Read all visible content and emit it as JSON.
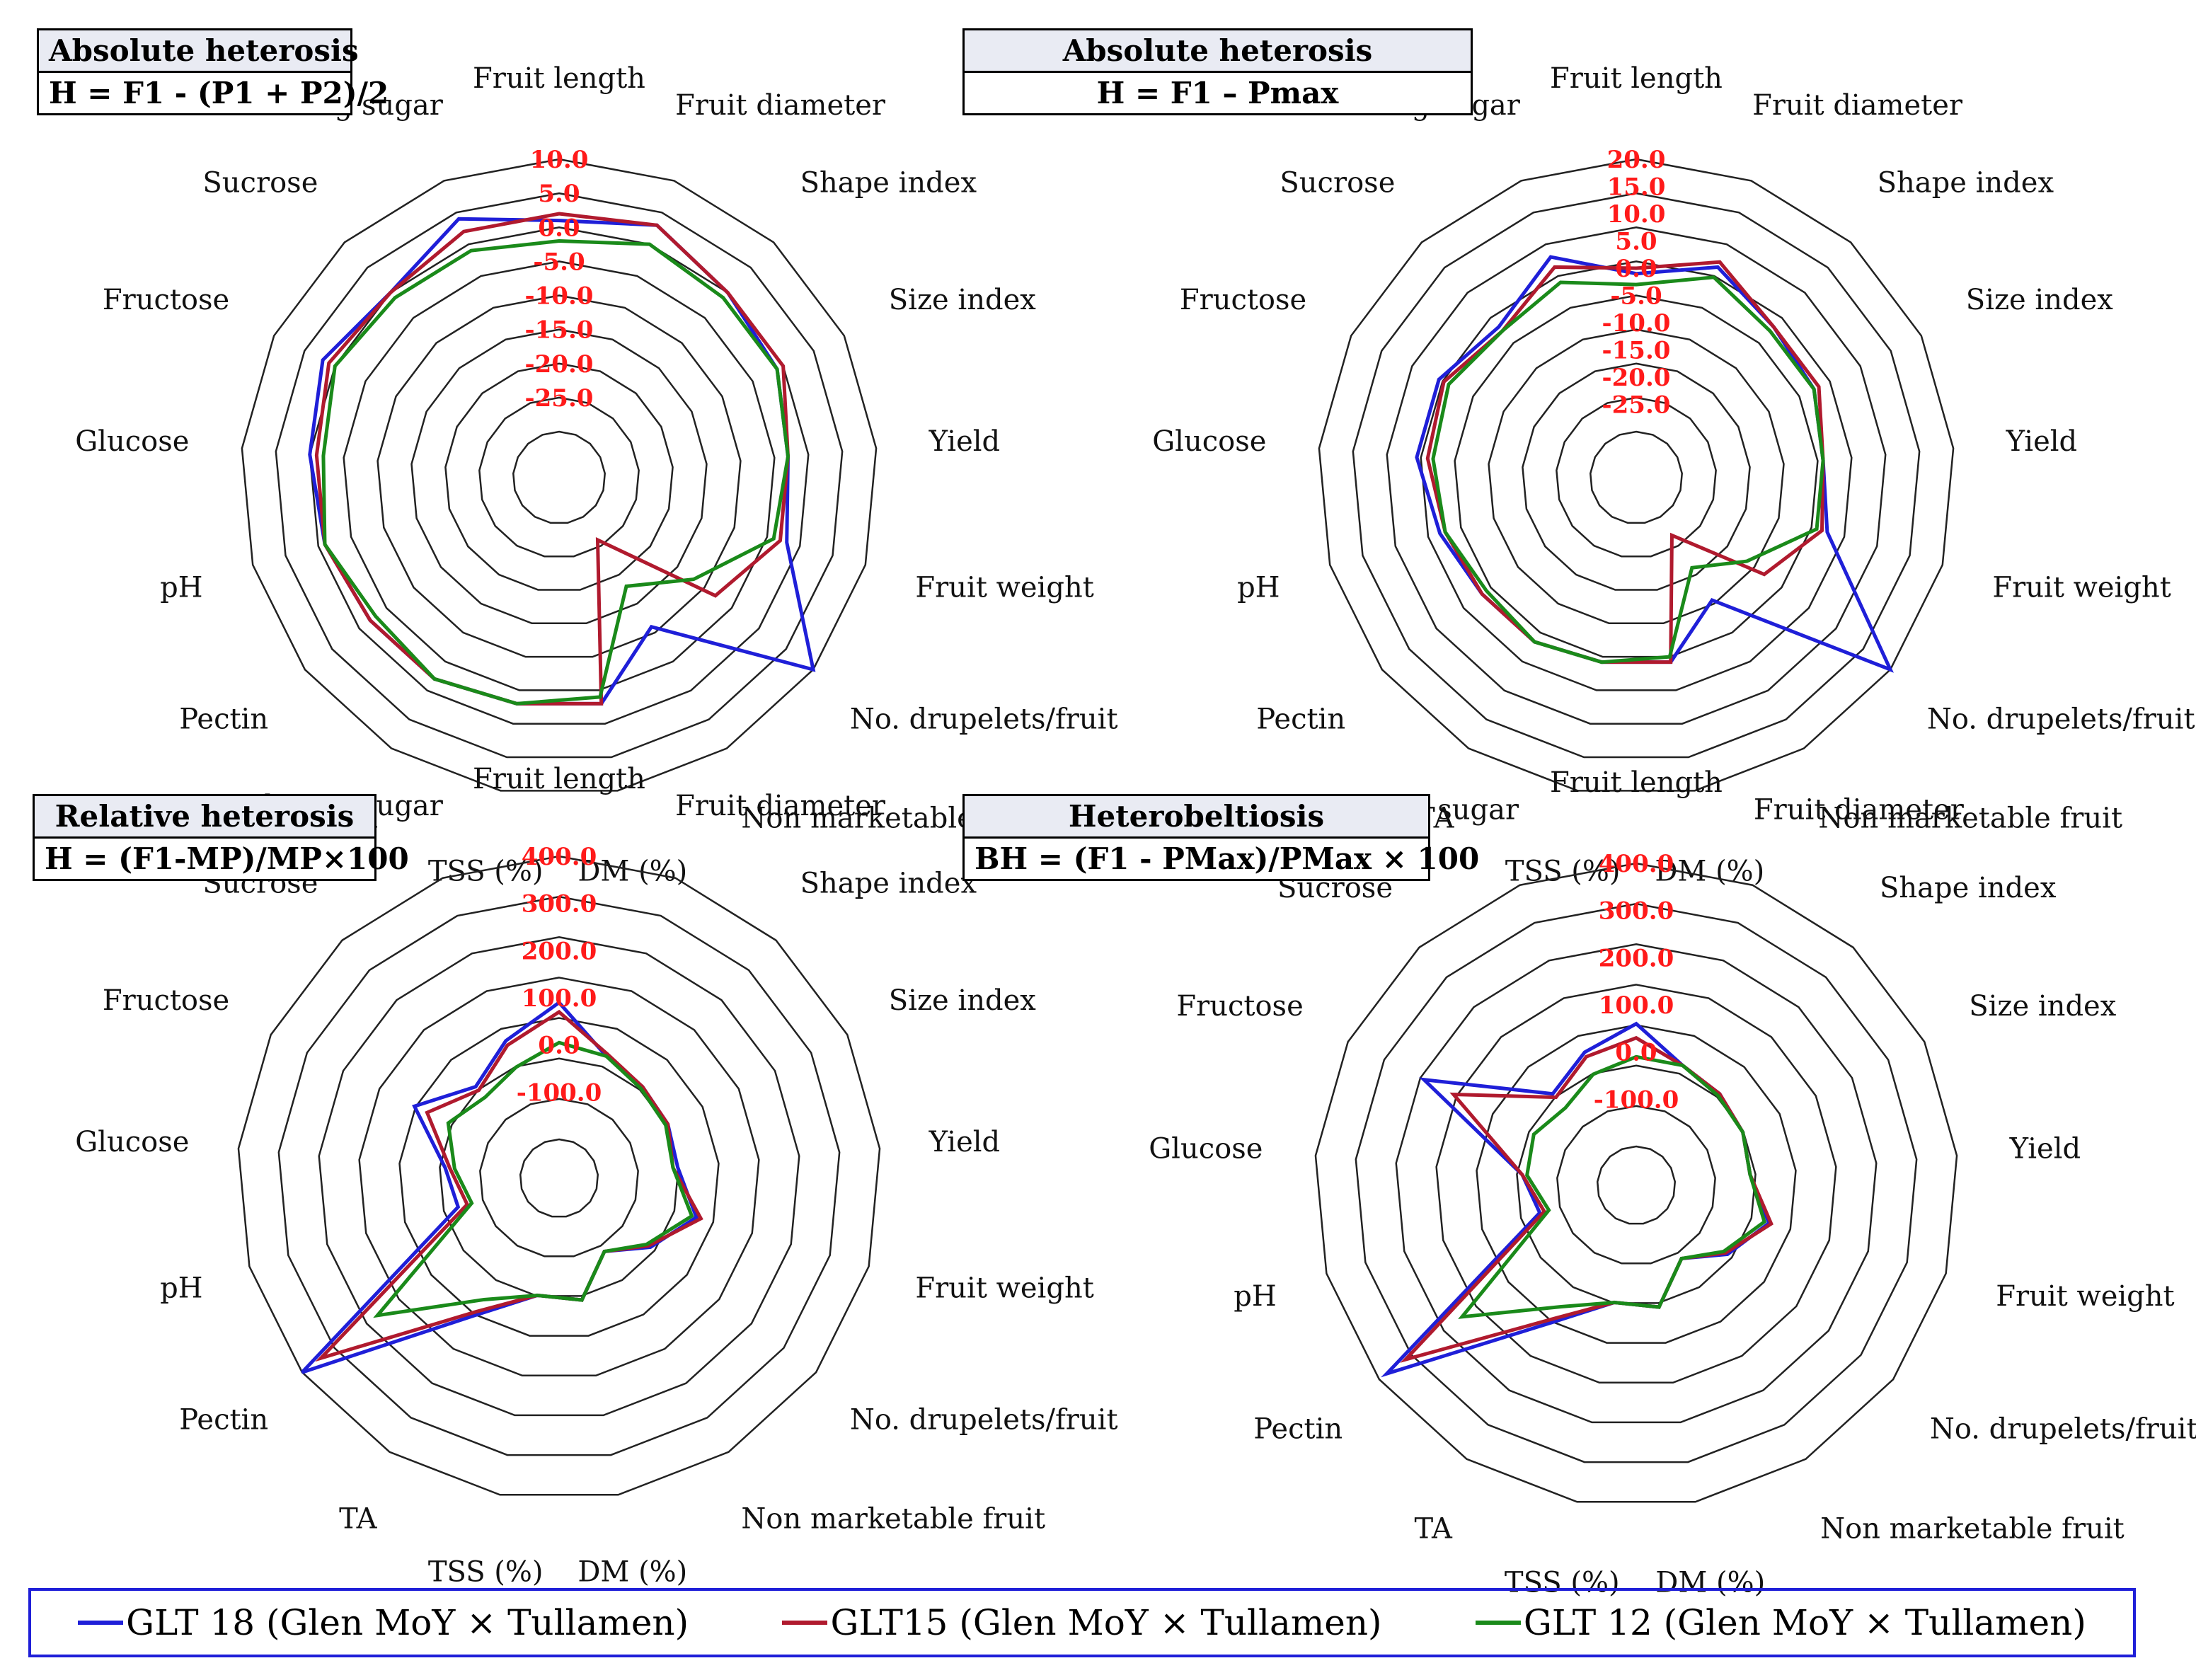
{
  "axes": [
    "Fruit length",
    "Fruit diameter",
    "Shape index",
    "Size index",
    "Yield",
    "Fruit weight",
    "No. drupelets/fruit",
    "Non marketable fruit",
    "DM (%)",
    "TSS (%)",
    "TA",
    "Pectin",
    "pH",
    "Glucose",
    "Fructose",
    "Sucrose",
    "Reducing sugar"
  ],
  "series_names": [
    "GLT 18 (Glen MoY × Tullamen)",
    "GLT15 (Glen MoY × Tullamen)",
    "GLT 12 (Glen MoY × Tullamen)"
  ],
  "colors": {
    "GLT 18 (Glen MoY × Tullamen)": "#1f1fd8",
    "GLT15 (Glen MoY × Tullamen)": "#b01a2e",
    "GLT 12 (Glen MoY × Tullamen)": "#1a8a1a",
    "tick_label": "#ff1a1a"
  },
  "panels": [
    {
      "title": "Absolute heterosis",
      "formula": "H = F1 - (P1 + P2)/2"
    },
    {
      "title": "Absolute heterosis",
      "formula": "H = F1 – Pmax"
    },
    {
      "title": "Relative heterosis",
      "formula": "H = (F1-MP)/MP×100"
    },
    {
      "title": "Heterobeltiosis",
      "formula": "BH = (F1 - PMax)/PMax × 100"
    }
  ],
  "chart_data": [
    {
      "type": "radar",
      "title": "Absolute heterosis",
      "subtitle": "H = F1 - (P1 + P2)/2",
      "ticks": [
        "10.0",
        "5.0",
        "0.0",
        "-5.0",
        "-10.0",
        "-15.0",
        "-20.0",
        "-25.0"
      ],
      "ylim": [
        -30,
        10
      ],
      "categories": [
        "Fruit length",
        "Fruit diameter",
        "Shape index",
        "Size index",
        "Yield",
        "Fruit weight",
        "No. drupelets/fruit",
        "Non marketable fruit",
        "DM (%)",
        "TSS (%)",
        "TA",
        "Pectin",
        "pH",
        "Glucose",
        "Fructose",
        "Sucrose",
        "Reducing sugar"
      ],
      "series": [
        {
          "name": "GLT 18 (Glen MoY × Tullamen)",
          "values": [
            1,
            3,
            0,
            -1,
            -3,
            -2,
            18,
            -11,
            -3,
            -3,
            -2,
            -2,
            -1,
            0,
            2,
            0,
            4
          ]
        },
        {
          "name": "GLT15 (Glen MoY × Tullamen)",
          "values": [
            2,
            3,
            0,
            0,
            -3,
            -3,
            -8,
            -26,
            -3,
            -3,
            -2,
            -2,
            -1,
            -1,
            1,
            0,
            2
          ]
        },
        {
          "name": "GLT 12 (Glen MoY × Tullamen)",
          "values": [
            -2,
            0,
            -1,
            -1,
            -3,
            -4,
            -12,
            -18,
            -4,
            -3,
            -2,
            -3,
            -1,
            -2,
            0,
            -1,
            -1
          ]
        }
      ]
    },
    {
      "type": "radar",
      "title": "Absolute heterosis",
      "subtitle": "H = F1 – Pmax",
      "ticks": [
        "20.0",
        "15.0",
        "10.0",
        "5.0",
        "0.0",
        "-5.0",
        "-10.0",
        "-15.0",
        "-20.0",
        "-25.0"
      ],
      "ylim": [
        -30,
        20
      ],
      "categories": [
        "Fruit length",
        "Fruit diameter",
        "Shape index",
        "Size index",
        "Yield",
        "Fruit weight",
        "No. drupelets/fruit",
        "Non marketable fruit",
        "DM (%)",
        "TSS (%)",
        "TA",
        "Pectin",
        "pH",
        "Glucose",
        "Fructose",
        "Sucrose",
        "Reducing sugar"
      ],
      "series": [
        {
          "name": "GLT 18 (Glen MoY × Tullamen)",
          "values": [
            -1,
            3,
            -1,
            -2,
            -4,
            -2,
            20,
            -12,
            -4,
            -4,
            -3,
            -3,
            -1,
            2,
            2,
            -1,
            5
          ]
        },
        {
          "name": "GLT15 (Glen MoY × Tullamen)",
          "values": [
            0,
            4,
            -1,
            -1,
            -4,
            -3,
            -9,
            -26,
            -4,
            -4,
            -3,
            -3,
            -2,
            0,
            1,
            -2,
            3
          ]
        },
        {
          "name": "GLT 12 (Glen MoY × Tullamen)",
          "values": [
            -3,
            1,
            -2,
            -2,
            -4,
            -4,
            -13,
            -19,
            -5,
            -4,
            -3,
            -4,
            -2,
            -1,
            0,
            -2,
            0
          ]
        }
      ]
    },
    {
      "type": "radar",
      "title": "Relative heterosis",
      "subtitle": "H = (F1-MP)/MP×100",
      "ticks": [
        "400.0",
        "300.0",
        "200.0",
        "100.0",
        "0.0",
        "-100.0"
      ],
      "ylim": [
        -200,
        400
      ],
      "categories": [
        "Fruit length",
        "Fruit diameter",
        "Shape index",
        "Size index",
        "Yield",
        "Fruit weight",
        "No. drupelets/fruit",
        "Non marketable fruit",
        "DM (%)",
        "TSS (%)",
        "TA",
        "Pectin",
        "pH",
        "Glucose",
        "Fructose",
        "Sucrose",
        "Reducing sugar"
      ],
      "series": [
        {
          "name": "GLT 18 (Glen MoY × Tullamen)",
          "values": [
            90,
            -5,
            -20,
            -25,
            -30,
            20,
            -40,
            -100,
            -20,
            -30,
            60,
            400,
            -60,
            -40,
            60,
            -20,
            30
          ]
        },
        {
          "name": "GLT15 (Glen MoY × Tullamen)",
          "values": [
            70,
            0,
            -20,
            -25,
            -40,
            30,
            -45,
            -100,
            -20,
            -30,
            50,
            350,
            -80,
            -50,
            30,
            -30,
            20
          ]
        },
        {
          "name": "GLT 12 (Glen MoY × Tullamen)",
          "values": [
            5,
            -5,
            -25,
            -30,
            -40,
            10,
            -50,
            -100,
            -20,
            -30,
            20,
            200,
            -90,
            -60,
            -20,
            -50,
            -30
          ]
        }
      ]
    },
    {
      "type": "radar",
      "title": "Heterobeltiosis",
      "subtitle": "BH = (F1 - PMax)/PMax × 100",
      "ticks": [
        "400.0",
        "300.0",
        "200.0",
        "100.0",
        "0.0",
        "-100.0"
      ],
      "ylim": [
        -200,
        400
      ],
      "categories": [
        "Fruit length",
        "Fruit diameter",
        "Shape index",
        "Size index",
        "Yield",
        "Fruit weight",
        "No. drupelets/fruit",
        "Non marketable fruit",
        "DM (%)",
        "TSS (%)",
        "TA",
        "Pectin",
        "pH",
        "Glucose",
        "Fructose",
        "Sucrose",
        "Reducing sugar"
      ],
      "series": [
        {
          "name": "GLT 18 (Glen MoY × Tullamen)",
          "values": [
            60,
            -10,
            -20,
            -30,
            -40,
            10,
            -40,
            -100,
            -20,
            -30,
            60,
            380,
            -70,
            -40,
            220,
            -20,
            20
          ]
        },
        {
          "name": "GLT15 (Glen MoY × Tullamen)",
          "values": [
            30,
            -10,
            -20,
            -30,
            -40,
            15,
            -45,
            -100,
            -20,
            -30,
            50,
            330,
            -80,
            -40,
            150,
            -30,
            10
          ]
        },
        {
          "name": "GLT 12 (Glen MoY × Tullamen)",
          "values": [
            -10,
            -10,
            -25,
            -30,
            -40,
            0,
            -50,
            -100,
            -20,
            -30,
            20,
            180,
            -90,
            -50,
            -40,
            -60,
            -30
          ]
        }
      ]
    }
  ]
}
